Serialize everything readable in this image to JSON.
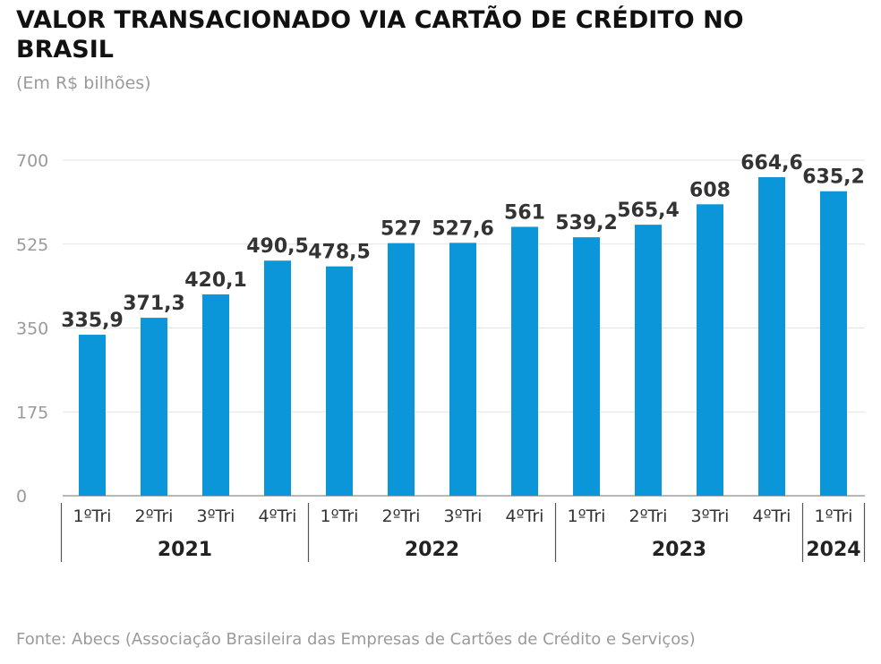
{
  "title": "VALOR TRANSACIONADO VIA CARTÃO DE CRÉDITO NO BRASIL",
  "subtitle": "(Em R$ bilhões)",
  "footer": "Fonte: Abecs (Associação Brasileira das Empresas de Cartões de Crédito e Serviços)",
  "colors": {
    "bar": "#0b96d9",
    "grid": "#e3e3e3",
    "value_label": "#333333",
    "axis_text": "#9a9a9a"
  },
  "chart_data": {
    "type": "bar",
    "title": "VALOR TRANSACIONADO VIA CARTÃO DE CRÉDITO NO BRASIL",
    "ylabel": "(Em R$ bilhões)",
    "xlabel": "",
    "ylim": [
      0,
      700
    ],
    "yticks": [
      0,
      175,
      350,
      525,
      700
    ],
    "ytick_labels": [
      "0",
      "175",
      "350",
      "525",
      "700"
    ],
    "grid": true,
    "categories": [
      "1ºTri",
      "2ºTri",
      "3ºTri",
      "4ºTri",
      "1ºTri",
      "2ºTri",
      "3ºTri",
      "4ºTri",
      "1ºTri",
      "2ºTri",
      "3ºTri",
      "4ºTri",
      "1ºTri"
    ],
    "values": [
      335.9,
      371.3,
      420.1,
      490.5,
      478.5,
      527,
      527.6,
      561,
      539.2,
      565.4,
      608,
      664.6,
      635.2
    ],
    "value_labels": [
      "335,9",
      "371,3",
      "420,1",
      "490,5",
      "478,5",
      "527",
      "527,6",
      "561",
      "539,2",
      "565,4",
      "608",
      "664,6",
      "635,2"
    ],
    "groups": [
      {
        "label": "2021",
        "count": 4
      },
      {
        "label": "2022",
        "count": 4
      },
      {
        "label": "2023",
        "count": 4
      },
      {
        "label": "2024",
        "count": 1
      }
    ]
  }
}
